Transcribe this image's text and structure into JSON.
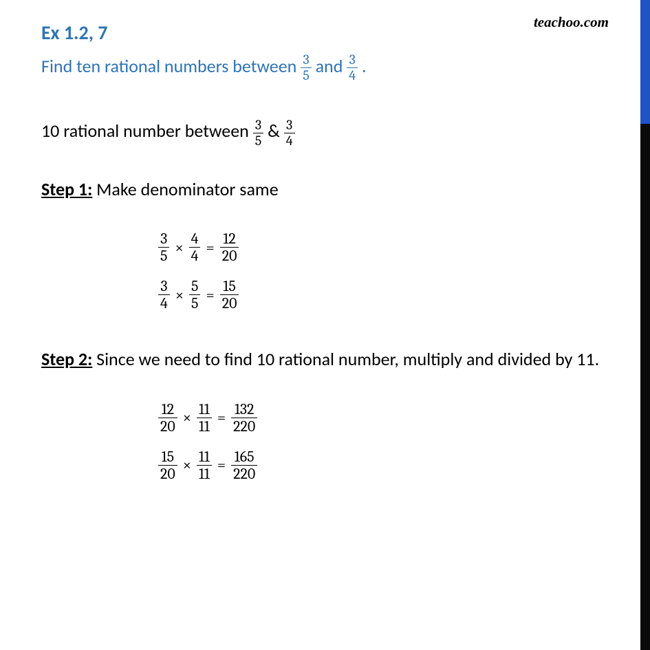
{
  "brand": "teachoo.com",
  "header": {
    "ex_label": "Ex 1.2, 7",
    "question_pre": "Find ten rational numbers between ",
    "question_mid": " and ",
    "question_post": " .",
    "f1_num": "3",
    "f1_den": "5",
    "f2_num": "3",
    "f2_den": "4"
  },
  "intro": {
    "pre": "10 rational number between ",
    "mid": " & ",
    "f1_num": "3",
    "f1_den": "5",
    "f2_num": "3",
    "f2_den": "4"
  },
  "step1": {
    "label": "Step 1:",
    "text": " Make denominator same",
    "eq1": {
      "a_num": "3",
      "a_den": "5",
      "b_num": "4",
      "b_den": "4",
      "r_num": "12",
      "r_den": "20"
    },
    "eq2": {
      "a_num": "3",
      "a_den": "4",
      "b_num": "5",
      "b_den": "5",
      "r_num": "15",
      "r_den": "20"
    }
  },
  "step2": {
    "label": "Step 2:",
    "text": " Since we need to find 10 rational number, multiply and divided by 11.",
    "eq1": {
      "a_num": "12",
      "a_den": "20",
      "b_num": "11",
      "b_den": "11",
      "r_num": "132",
      "r_den": "220"
    },
    "eq2": {
      "a_num": "15",
      "a_den": "20",
      "b_num": "11",
      "b_den": "11",
      "r_num": "165",
      "r_den": "220"
    }
  },
  "ops": {
    "times": "×",
    "eq": "="
  },
  "colors": {
    "heading": "#2e74b5",
    "body": "#000000",
    "bg": "#ffffff",
    "bar_top": "#1f53c6",
    "bar_bottom": "#0a0a0a"
  }
}
